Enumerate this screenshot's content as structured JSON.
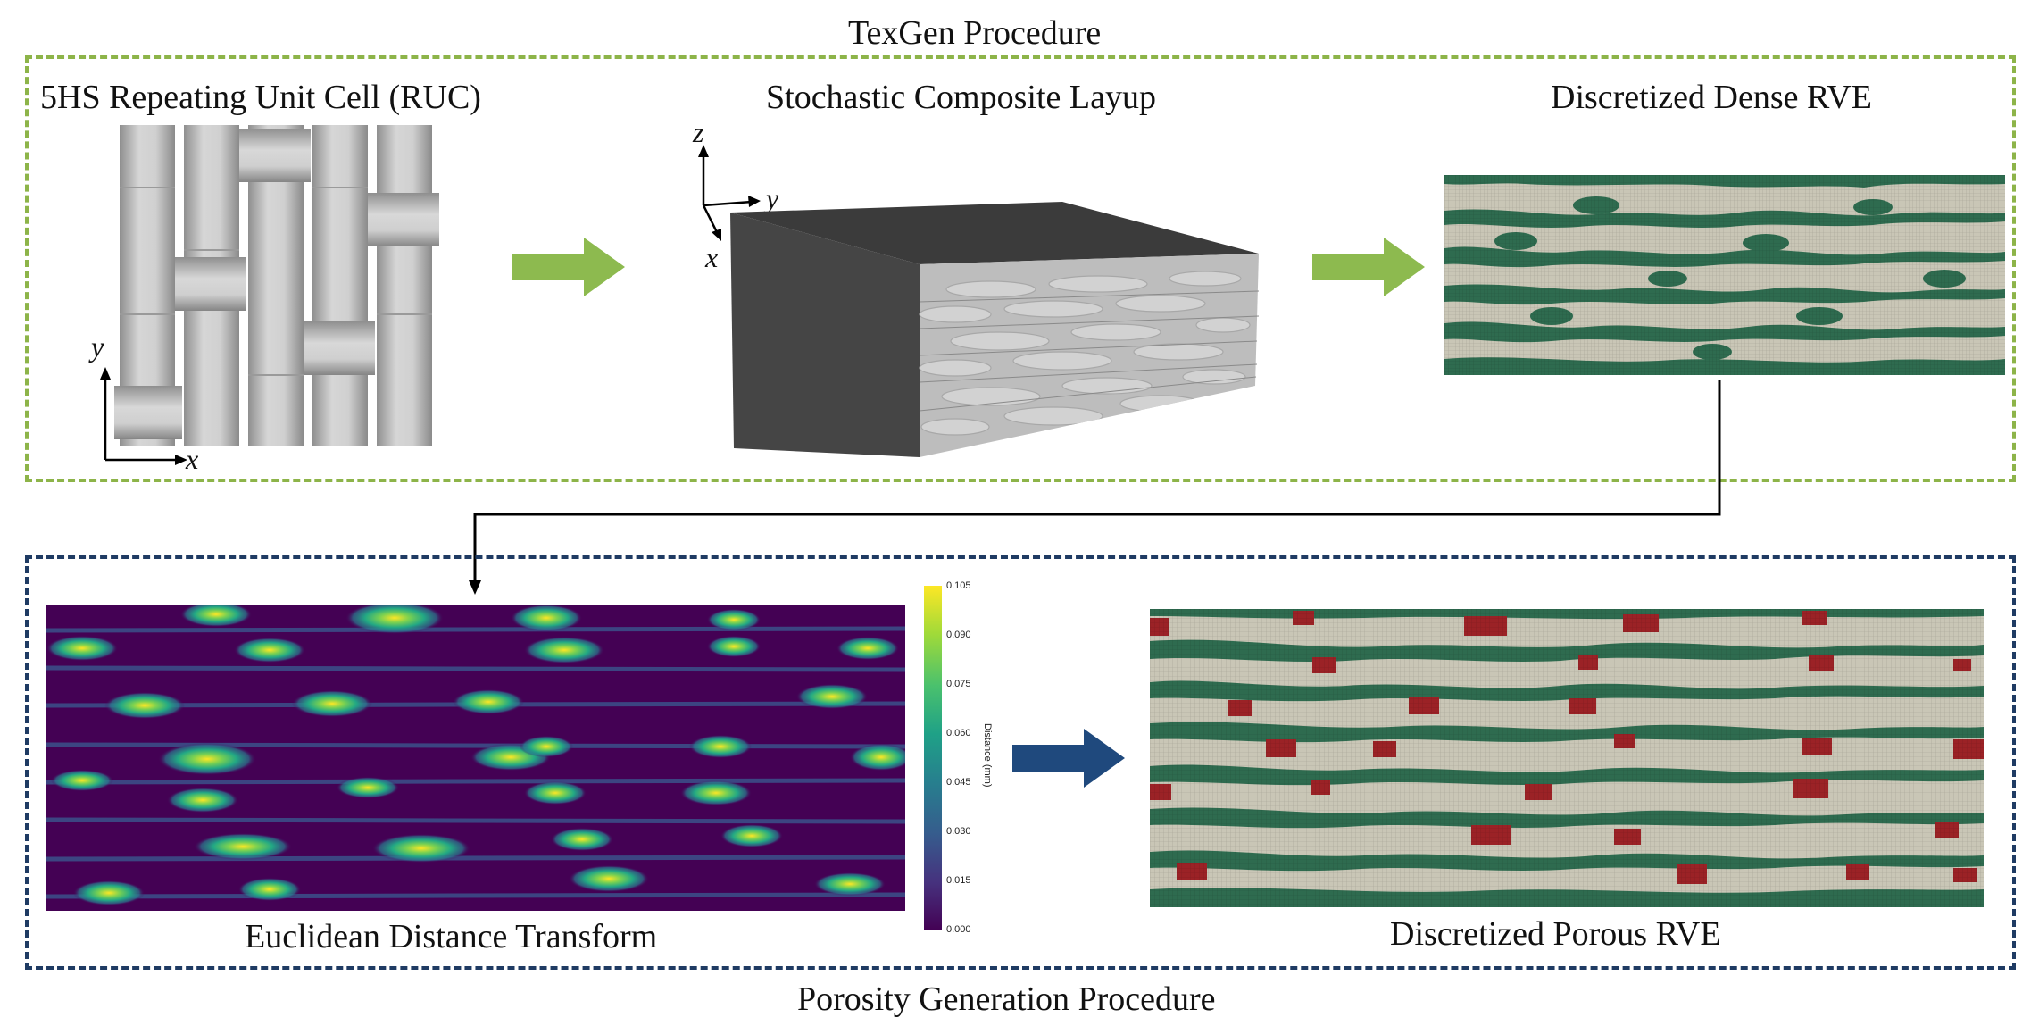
{
  "top_section": {
    "title": "TexGen Procedure",
    "panels": {
      "ruc": "5HS Repeating Unit Cell (RUC)",
      "layup": "Stochastic Composite Layup",
      "dense": "Discretized Dense RVE"
    },
    "ruc_axes": {
      "y": "y",
      "x": "x"
    },
    "layup_axes": {
      "z": "z",
      "y": "y",
      "x": "x"
    },
    "border_color": "#8db449",
    "arrow_color": "#8dba4f"
  },
  "bottom_section": {
    "title": "Porosity Generation Procedure",
    "panels": {
      "edt": "Euclidean Distance Transform",
      "porous": "Discretized Porous RVE"
    },
    "border_color": "#1f3b63",
    "arrow_color": "#1f497d"
  },
  "colorbar": {
    "title": "Distance (mm)",
    "ticks": [
      "0.105",
      "0.090",
      "0.075",
      "0.060",
      "0.045",
      "0.030",
      "0.015",
      "0.000"
    ]
  },
  "colors": {
    "matrix_gray": "#c9c6b6",
    "tow_green": "#2e6b4f",
    "void_red": "#9b2226",
    "viridis_dark": "#440154"
  }
}
